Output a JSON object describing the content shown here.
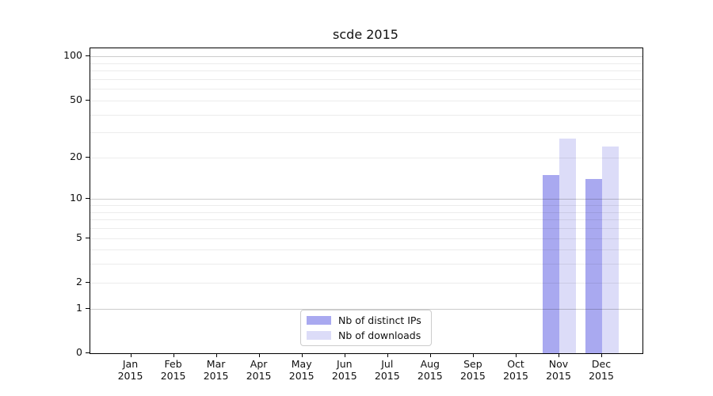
{
  "title": "scde 2015",
  "chart_data": {
    "type": "bar",
    "title": "scde 2015",
    "categories": [
      "Jan",
      "Feb",
      "Mar",
      "Apr",
      "May",
      "Jun",
      "Jul",
      "Aug",
      "Sep",
      "Oct",
      "Nov",
      "Dec"
    ],
    "category_year": "2015",
    "series": [
      {
        "name": "Nb of distinct IPs",
        "color": "#a9a9f0",
        "values": [
          0,
          0,
          0,
          0,
          0,
          0,
          0,
          0,
          0,
          0,
          15,
          14
        ]
      },
      {
        "name": "Nb of downloads",
        "color": "#dcdcf8",
        "values": [
          0,
          0,
          0,
          0,
          0,
          0,
          0,
          0,
          0,
          0,
          27,
          24
        ]
      }
    ],
    "y_axis": {
      "scale": "log1p",
      "tick_labels": [
        0,
        1,
        2,
        5,
        10,
        20,
        50,
        100
      ],
      "major_gridlines": [
        1,
        10,
        100
      ],
      "minor_gridlines": [
        2,
        3,
        4,
        5,
        6,
        7,
        8,
        9,
        20,
        30,
        40,
        50,
        60,
        70,
        80,
        90
      ],
      "range_top_value": 113
    },
    "x_axis": {
      "months_shown": 12
    },
    "legend_position": "bottom-center",
    "grid": true
  },
  "legend": {
    "items": [
      {
        "label": "Nb of distinct IPs",
        "color": "#a9a9f0"
      },
      {
        "label": "Nb of downloads",
        "color": "#dcdcf8"
      }
    ]
  },
  "colors": {
    "distinct_ips": "#a9a9f0",
    "downloads": "#dcdcf8",
    "frame": "#000000"
  }
}
